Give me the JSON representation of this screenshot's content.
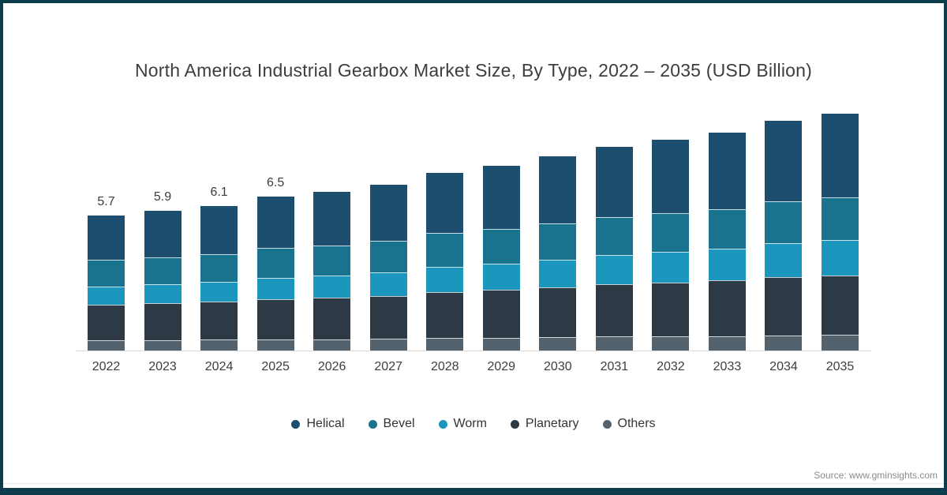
{
  "title": "North America Industrial Gearbox Market Size, By Type, 2022 – 2035 (USD Billion)",
  "source": "Source: www.gminsights.com",
  "frame_color": "#0d3c4c",
  "chart_data": {
    "type": "bar",
    "stacked": true,
    "title": "North America Industrial Gearbox Market Size, By Type, 2022 – 2035 (USD Billion)",
    "xlabel": "",
    "ylabel": "USD Billion",
    "ylim": [
      0,
      10.5
    ],
    "grid": false,
    "legend_position": "bottom",
    "categories": [
      "2022",
      "2023",
      "2024",
      "2025",
      "2026",
      "2027",
      "2028",
      "2029",
      "2030",
      "2031",
      "2032",
      "2033",
      "2034",
      "2035"
    ],
    "stack_order_bottom_to_top": [
      "Others",
      "Planetary",
      "Worm",
      "Bevel",
      "Helical"
    ],
    "series": [
      {
        "name": "Helical",
        "color": "#1d4e6f",
        "values": [
          1.87,
          1.95,
          2.02,
          2.17,
          2.25,
          2.36,
          2.55,
          2.66,
          2.82,
          2.97,
          3.09,
          3.21,
          3.4,
          3.53
        ]
      },
      {
        "name": "Bevel",
        "color": "#19738f",
        "values": [
          1.13,
          1.16,
          1.19,
          1.26,
          1.29,
          1.34,
          1.43,
          1.47,
          1.54,
          1.6,
          1.65,
          1.69,
          1.77,
          1.81
        ]
      },
      {
        "name": "Worm",
        "color": "#1b97bd",
        "values": [
          0.77,
          0.8,
          0.84,
          0.9,
          0.93,
          0.98,
          1.06,
          1.11,
          1.17,
          1.24,
          1.29,
          1.34,
          1.43,
          1.48
        ]
      },
      {
        "name": "Planetary",
        "color": "#2d3a45",
        "values": [
          1.5,
          1.55,
          1.6,
          1.69,
          1.74,
          1.81,
          1.94,
          2.01,
          2.11,
          2.2,
          2.27,
          2.34,
          2.46,
          2.53
        ]
      },
      {
        "name": "Others",
        "color": "#54626e",
        "values": [
          0.43,
          0.44,
          0.45,
          0.47,
          0.48,
          0.5,
          0.53,
          0.54,
          0.56,
          0.59,
          0.6,
          0.61,
          0.64,
          0.65
        ]
      }
    ],
    "totals": [
      5.7,
      5.9,
      6.1,
      6.5,
      6.7,
      7.0,
      7.5,
      7.8,
      8.2,
      8.6,
      8.9,
      9.2,
      9.7,
      10.0
    ],
    "bar_labels": [
      "5.7",
      "5.9",
      "6.1",
      "6.5",
      "",
      "",
      "",
      "",
      "",
      "",
      "",
      "",
      "",
      ""
    ]
  }
}
